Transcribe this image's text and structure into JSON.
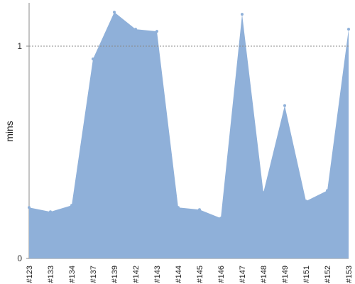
{
  "chart_data": {
    "type": "area",
    "title": "",
    "xlabel": "",
    "ylabel": "mins",
    "categories": [
      "#123",
      "#133",
      "#134",
      "#137",
      "#139",
      "#142",
      "#143",
      "#144",
      "#145",
      "#146",
      "#147",
      "#148",
      "#149",
      "#151",
      "#152",
      "#153"
    ],
    "series": [
      {
        "values": [
          0.24,
          0.22,
          0.25,
          0.94,
          1.16,
          1.08,
          1.07,
          0.24,
          0.23,
          0.19,
          1.15,
          0.31,
          0.72,
          0.27,
          0.32,
          1.08
        ]
      }
    ],
    "ylim": [
      0,
      1.2
    ],
    "yticks": [
      "0",
      "1"
    ],
    "reference_line": {
      "value": 1,
      "style": "dotted"
    },
    "grid": false,
    "legend": "none",
    "colors": {
      "fill": "#8fb0d9",
      "axis": "#888888",
      "reference": "#888888"
    }
  }
}
